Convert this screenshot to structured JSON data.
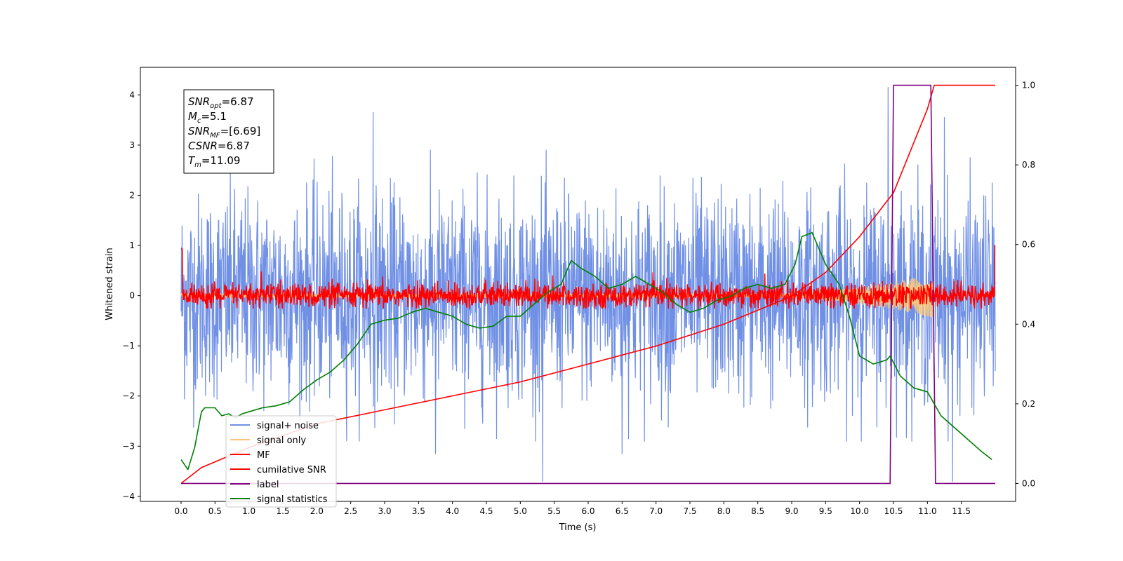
{
  "chart_data": {
    "type": "line",
    "xlabel": "Time (s)",
    "ylabel": "Whitened strain",
    "xlim": [
      -0.6,
      12.3
    ],
    "ylim": [
      -4.1,
      4.55
    ],
    "y2lim": [
      -0.045,
      1.045
    ],
    "x_ticks": [
      "0.0",
      "0.5",
      "1.0",
      "1.5",
      "2.0",
      "2.5",
      "3.0",
      "3.5",
      "4.0",
      "4.5",
      "5.0",
      "5.5",
      "6.0",
      "6.5",
      "7.0",
      "7.5",
      "8.0",
      "8.5",
      "9.0",
      "9.5",
      "10.0",
      "10.5",
      "11.0",
      "11.5"
    ],
    "y_ticks": [
      "4",
      "3",
      "2",
      "1",
      "0",
      "−1",
      "−2",
      "−3",
      "−4"
    ],
    "y2_ticks": [
      "1.0",
      "0.8",
      "0.6",
      "0.4",
      "0.2",
      "0.0"
    ],
    "grid": false,
    "legend_position": "lower-left",
    "annotation": {
      "lines": [
        {
          "var": "SNR",
          "sub": "opt",
          "value": "=6.87"
        },
        {
          "var": "M",
          "sub": "c",
          "value": "=5.1"
        },
        {
          "var": "SNR",
          "sub": "MF",
          "value": "=[6.69]"
        },
        {
          "var": "CSNR",
          "sub": "",
          "value": "=6.87"
        },
        {
          "var": "T",
          "sub": "m",
          "value": "=11.09"
        }
      ]
    },
    "series": [
      {
        "name": "signal+ noise",
        "color": "#7090e6",
        "axis": "left",
        "kind": "noise",
        "x_range": [
          0,
          12.0
        ],
        "spread": 1.0,
        "notable_spikes": [
          [
            2.83,
            3.65
          ],
          [
            10.42,
            4.15
          ],
          [
            11.25,
            3.55
          ],
          [
            5.33,
            -3.7
          ],
          [
            11.37,
            -3.7
          ],
          [
            6.5,
            -3.15
          ],
          [
            3.75,
            -3.15
          ]
        ]
      },
      {
        "name": "signal only",
        "color": "#f7c77e",
        "axis": "left",
        "kind": "chirp",
        "x_range": [
          0,
          11.1
        ],
        "peak_amplitude": 0.4
      },
      {
        "name": "MF",
        "color": "#ff0000",
        "axis": "left",
        "kind": "noise",
        "x_range": [
          0,
          12.0
        ],
        "spread": 0.12
      },
      {
        "name": "cumilative SNR",
        "color": "#ff0000",
        "axis": "right",
        "x": [
          0.0,
          0.3,
          1.0,
          2.0,
          3.0,
          4.0,
          5.0,
          6.0,
          7.0,
          8.0,
          9.0,
          9.5,
          10.0,
          10.5,
          11.0,
          11.1,
          12.0
        ],
        "y": [
          0.0,
          0.04,
          0.09,
          0.15,
          0.185,
          0.22,
          0.255,
          0.3,
          0.345,
          0.4,
          0.47,
          0.53,
          0.62,
          0.73,
          0.94,
          1.0,
          1.0
        ]
      },
      {
        "name": "label",
        "color": "#800080",
        "axis": "right",
        "x": [
          0.0,
          10.45,
          10.5,
          11.05,
          11.12,
          12.0
        ],
        "y": [
          0.0,
          0.0,
          1.0,
          1.0,
          0.0,
          0.0
        ]
      },
      {
        "name": "signal statistics",
        "color": "#008000",
        "axis": "right",
        "x": [
          0.0,
          0.1,
          0.2,
          0.3,
          0.35,
          0.5,
          0.6,
          0.7,
          0.8,
          0.9,
          1.0,
          1.2,
          1.4,
          1.6,
          1.8,
          2.0,
          2.2,
          2.4,
          2.6,
          2.8,
          3.0,
          3.2,
          3.4,
          3.6,
          3.8,
          4.0,
          4.2,
          4.4,
          4.6,
          4.8,
          5.0,
          5.2,
          5.4,
          5.6,
          5.75,
          5.9,
          6.1,
          6.3,
          6.5,
          6.7,
          6.9,
          7.1,
          7.3,
          7.5,
          7.7,
          7.9,
          8.1,
          8.3,
          8.5,
          8.7,
          8.9,
          9.05,
          9.15,
          9.3,
          9.5,
          9.7,
          9.85,
          10.0,
          10.2,
          10.4,
          10.45,
          10.6,
          10.8,
          11.0,
          11.2,
          11.4,
          11.6,
          11.8,
          11.95
        ],
        "y": [
          0.06,
          0.035,
          0.09,
          0.18,
          0.19,
          0.19,
          0.17,
          0.175,
          0.165,
          0.175,
          0.18,
          0.19,
          0.195,
          0.205,
          0.235,
          0.26,
          0.28,
          0.31,
          0.35,
          0.4,
          0.41,
          0.415,
          0.43,
          0.44,
          0.43,
          0.42,
          0.4,
          0.39,
          0.395,
          0.42,
          0.42,
          0.45,
          0.48,
          0.5,
          0.56,
          0.54,
          0.52,
          0.49,
          0.5,
          0.52,
          0.5,
          0.48,
          0.45,
          0.43,
          0.44,
          0.46,
          0.47,
          0.49,
          0.5,
          0.49,
          0.5,
          0.55,
          0.62,
          0.63,
          0.55,
          0.5,
          0.42,
          0.32,
          0.3,
          0.31,
          0.32,
          0.27,
          0.24,
          0.23,
          0.17,
          0.14,
          0.11,
          0.08,
          0.06
        ]
      }
    ]
  }
}
